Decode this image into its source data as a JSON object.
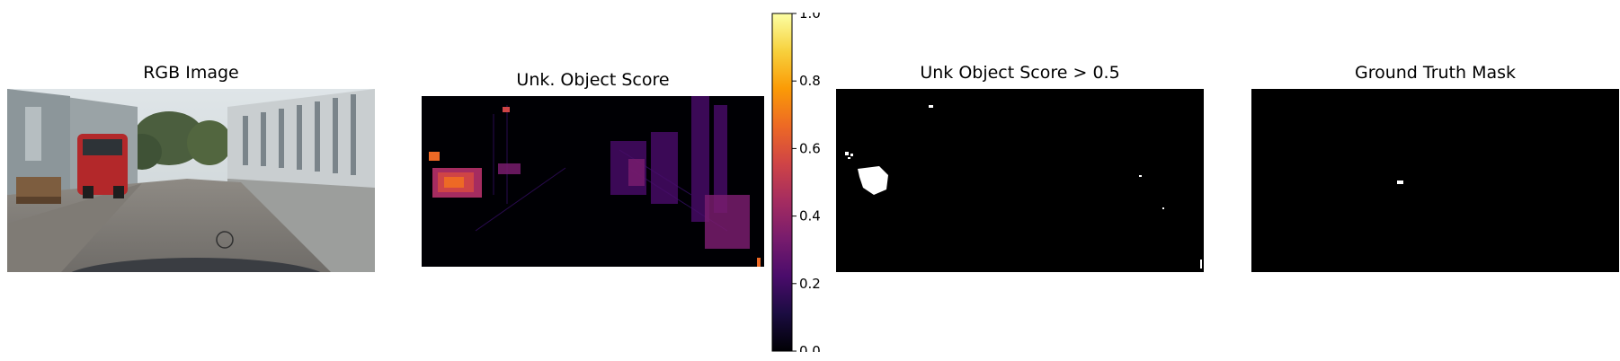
{
  "panels": [
    {
      "title": "RGB Image"
    },
    {
      "title": "Unk. Object Score"
    },
    {
      "title": "Unk Object Score > 0.5"
    },
    {
      "title": "Ground Truth Mask"
    }
  ],
  "chart_data": [
    {
      "type": "image",
      "title": "RGB Image"
    },
    {
      "type": "heatmap",
      "title": "Unk. Object Score",
      "colormap": "inferno",
      "colorbar": {
        "range": [
          0.0,
          1.0
        ],
        "ticks": [
          "0.0",
          "0.2",
          "0.4",
          "0.6",
          "0.8",
          "1.0"
        ]
      }
    },
    {
      "type": "image",
      "title": "Unk Object Score > 0.5"
    },
    {
      "type": "image",
      "title": "Ground Truth Mask"
    }
  ],
  "colors": {
    "inferno_stops": [
      "#000004",
      "#1b0c41",
      "#4a0c6b",
      "#781c6d",
      "#a52c60",
      "#cf4446",
      "#ed6925",
      "#fb9b06",
      "#f7d13d",
      "#fcffa4"
    ]
  }
}
